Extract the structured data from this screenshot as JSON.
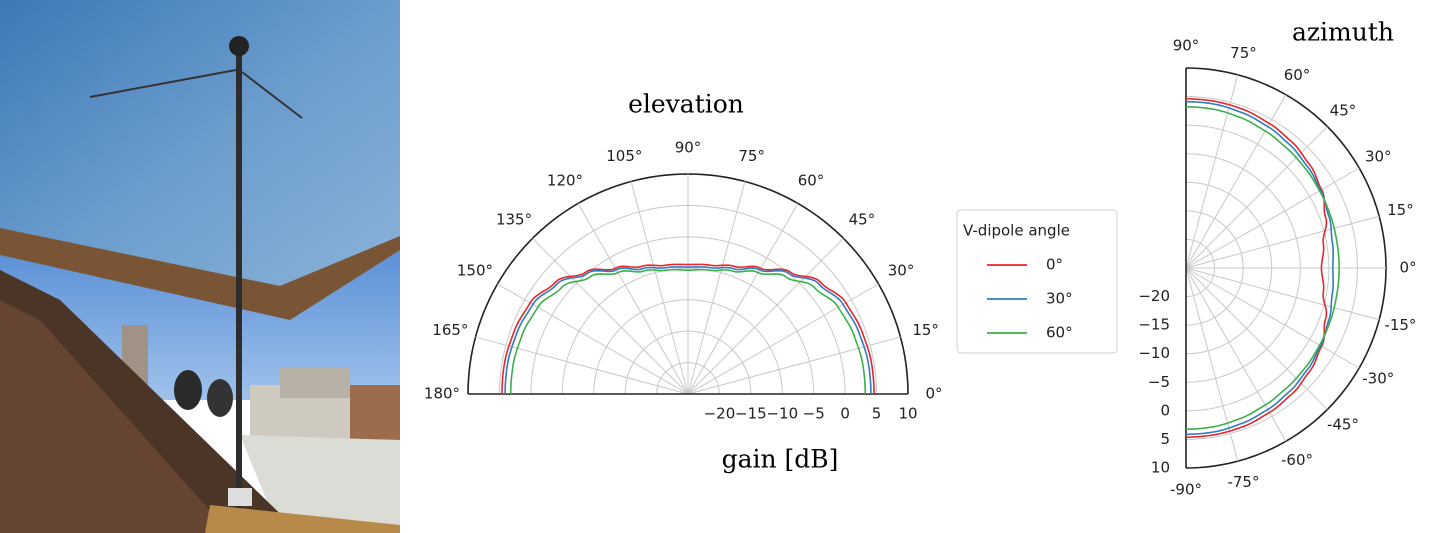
{
  "colors": {
    "series_0": "#e8262a",
    "series_30": "#2f7bc4",
    "series_60": "#3bb04a",
    "grid": "#c8c8c8",
    "frame": "#222222"
  },
  "chart_data": [
    {
      "type": "polar-line",
      "title": "elevation",
      "xlabel": "gain [dB]",
      "angle_range_deg": [
        0,
        180
      ],
      "angle_ticks_deg": [
        0,
        15,
        30,
        45,
        60,
        75,
        90,
        105,
        120,
        135,
        150,
        165,
        180
      ],
      "angle_tick_labels": [
        "0°",
        "15°",
        "30°",
        "45°",
        "60°",
        "75°",
        "90°",
        "105°",
        "120°",
        "135°",
        "150°",
        "165°",
        "180°"
      ],
      "rlim": [
        -25,
        10
      ],
      "radial_ticks": [
        -20,
        -15,
        -10,
        -5,
        0,
        5,
        10
      ],
      "radial_tick_labels": [
        "−20",
        "−15",
        "−10",
        "−5",
        "0",
        "5",
        "10"
      ],
      "grid": true,
      "angles_deg": [
        0,
        10,
        20,
        30,
        40,
        50,
        60,
        70,
        80,
        90,
        100,
        110,
        120,
        130,
        140,
        150,
        160,
        170,
        180
      ],
      "series": [
        {
          "name": "0°",
          "color": "#e8262a",
          "values": [
            4.6,
            4.6,
            4.4,
            4.0,
            2.6,
            0.3,
            -1.9,
            -3.4,
            -4.2,
            -4.4,
            -4.2,
            -3.4,
            -1.9,
            0.3,
            2.6,
            4.0,
            4.4,
            4.6,
            4.6
          ]
        },
        {
          "name": "30°",
          "color": "#2f7bc4",
          "values": [
            4.1,
            4.1,
            3.9,
            3.5,
            2.2,
            0.0,
            -2.2,
            -3.8,
            -4.6,
            -4.8,
            -4.6,
            -3.8,
            -2.2,
            0.0,
            2.2,
            3.5,
            3.9,
            4.1,
            4.1
          ]
        },
        {
          "name": "60°",
          "color": "#3bb04a",
          "values": [
            3.2,
            3.2,
            3.0,
            2.6,
            1.3,
            -0.7,
            -2.7,
            -4.2,
            -5.0,
            -5.3,
            -5.0,
            -4.2,
            -2.7,
            -0.7,
            1.3,
            2.6,
            3.0,
            3.2,
            3.2
          ]
        }
      ]
    },
    {
      "type": "polar-line",
      "title": "azimuth",
      "angle_range_deg": [
        -90,
        90
      ],
      "angle_ticks_deg": [
        -90,
        -75,
        -60,
        -45,
        -30,
        -15,
        0,
        15,
        30,
        45,
        60,
        75,
        90
      ],
      "angle_tick_labels": [
        "-90°",
        "-75°",
        "-60°",
        "-45°",
        "-30°",
        "-15°",
        "0°",
        "15°",
        "30°",
        "45°",
        "60°",
        "75°",
        "90°"
      ],
      "rlim": [
        -25,
        10
      ],
      "radial_ticks": [
        -20,
        -15,
        -10,
        -5,
        0,
        5,
        10
      ],
      "radial_tick_labels": [
        "−20",
        "−15",
        "−10",
        "−5",
        "0",
        "5",
        "10"
      ],
      "grid": true,
      "angles_deg": [
        -90,
        -80,
        -70,
        -60,
        -50,
        -40,
        -30,
        -20,
        -10,
        0,
        10,
        20,
        30,
        40,
        50,
        60,
        70,
        80,
        90
      ],
      "series": [
        {
          "name": "0°",
          "color": "#e8262a",
          "values": [
            4.6,
            4.6,
            4.5,
            4.2,
            3.8,
            3.2,
            2.4,
            1.0,
            -0.6,
            -1.3,
            -0.6,
            1.0,
            2.4,
            3.2,
            3.8,
            4.2,
            4.5,
            4.6,
            4.6
          ]
        },
        {
          "name": "30°",
          "color": "#2f7bc4",
          "values": [
            4.1,
            4.1,
            3.9,
            3.6,
            3.2,
            2.7,
            2.2,
            1.6,
            1.0,
            0.7,
            1.0,
            1.6,
            2.2,
            2.7,
            3.2,
            3.6,
            3.9,
            4.1,
            4.1
          ]
        },
        {
          "name": "60°",
          "color": "#3bb04a",
          "values": [
            3.2,
            3.2,
            3.0,
            2.7,
            2.4,
            2.2,
            2.0,
            1.9,
            1.8,
            1.8,
            1.8,
            1.9,
            2.0,
            2.2,
            2.4,
            2.7,
            3.0,
            3.2,
            3.2
          ]
        }
      ]
    }
  ],
  "legend": {
    "title": "V-dipole angle",
    "placement": "between charts",
    "entries": [
      "0°",
      "30°",
      "60°"
    ]
  }
}
